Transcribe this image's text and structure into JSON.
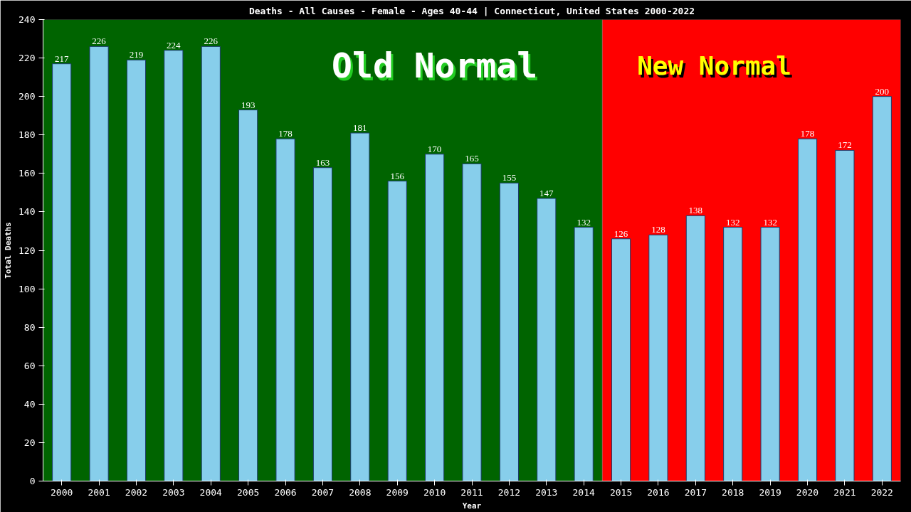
{
  "chart_data": {
    "type": "bar",
    "title": "Deaths - All Causes - Female - Ages 40-44 | Connecticut, United States 2000-2022",
    "xlabel": "Year",
    "ylabel": "Total Deaths",
    "x": [
      2000,
      2001,
      2002,
      2003,
      2004,
      2005,
      2006,
      2007,
      2008,
      2009,
      2010,
      2011,
      2012,
      2013,
      2014,
      2015,
      2016,
      2017,
      2018,
      2019,
      2020,
      2021,
      2022
    ],
    "values": [
      217,
      226,
      219,
      224,
      226,
      193,
      178,
      163,
      181,
      156,
      170,
      165,
      155,
      147,
      132,
      126,
      128,
      138,
      132,
      132,
      178,
      172,
      200
    ],
    "color": "#87ceeb",
    "data_labels": true,
    "xlim": [
      1999.5,
      2022.5
    ],
    "xticks": [
      2000,
      2001,
      2002,
      2003,
      2004,
      2005,
      2006,
      2007,
      2008,
      2009,
      2010,
      2011,
      2012,
      2013,
      2014,
      2015,
      2016,
      2017,
      2018,
      2019,
      2020,
      2021,
      2022
    ],
    "ylim": [
      0,
      240
    ],
    "yticks": [
      0,
      20,
      40,
      60,
      80,
      100,
      120,
      140,
      160,
      180,
      200,
      220,
      240
    ],
    "bands": [
      {
        "axis": "x",
        "from": 1999.5,
        "to": 2014.5,
        "label": "Old Normal",
        "color": "#006400"
      },
      {
        "axis": "x",
        "from": 2014.5,
        "to": 2022.5,
        "label": "New Normal",
        "color": "#ff0000"
      }
    ],
    "grid": false
  }
}
